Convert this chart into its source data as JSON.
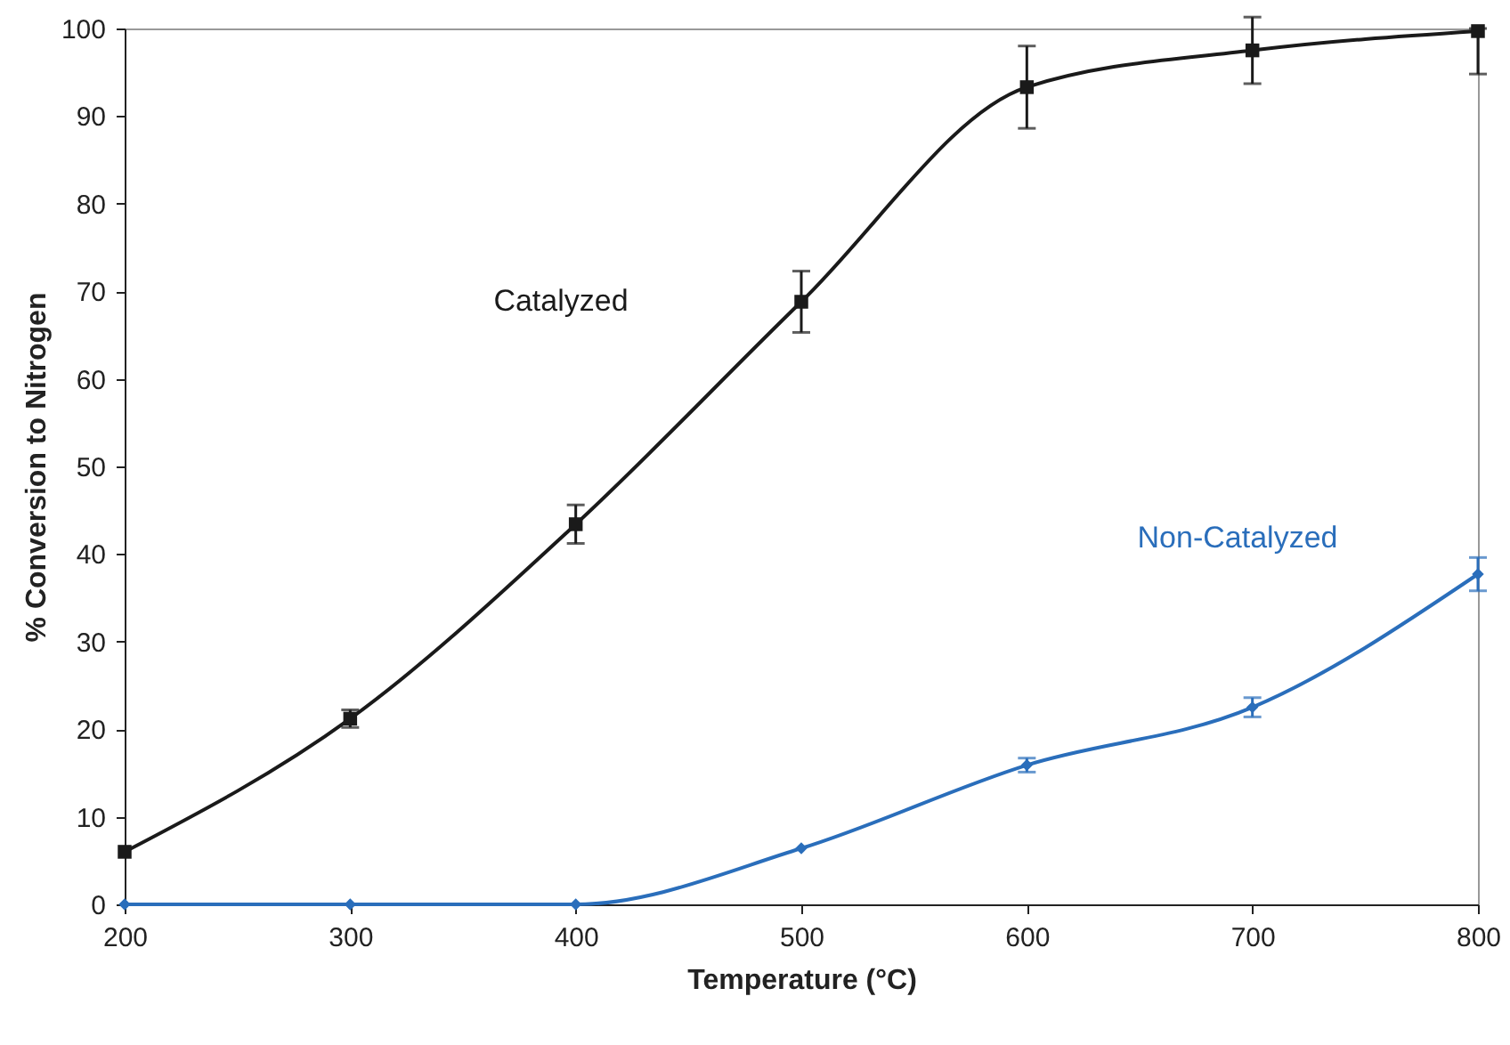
{
  "chart_data": {
    "type": "line",
    "xlabel": "Temperature (°C)",
    "ylabel": "% Conversion to Nitrogen",
    "x": [
      200,
      300,
      400,
      500,
      600,
      700,
      800
    ],
    "series": [
      {
        "name": "Catalyzed",
        "color": "#1a1a1a",
        "marker": "square",
        "values": [
          6.0,
          21.2,
          43.4,
          68.8,
          93.3,
          97.5,
          99.7
        ],
        "errors": [
          null,
          1,
          2.2,
          3.5,
          4.7,
          3.8,
          [
            94.8,
            100
          ]
        ]
      },
      {
        "name": "Non-Catalyzed",
        "color": "#2a6ebb",
        "marker": "diamond",
        "values": [
          0,
          0,
          0,
          6.4,
          15.9,
          22.5,
          37.7
        ],
        "errors": [
          null,
          null,
          null,
          null,
          0.8,
          1.1,
          1.9
        ]
      }
    ],
    "xlim": [
      200,
      800
    ],
    "xticks": [
      200,
      300,
      400,
      500,
      600,
      700,
      800
    ],
    "ylim": [
      0,
      100
    ],
    "yticks": [
      0,
      10,
      20,
      30,
      40,
      50,
      60,
      70,
      80,
      90,
      100
    ],
    "grid": false,
    "legend": false,
    "line_style": "solid"
  }
}
